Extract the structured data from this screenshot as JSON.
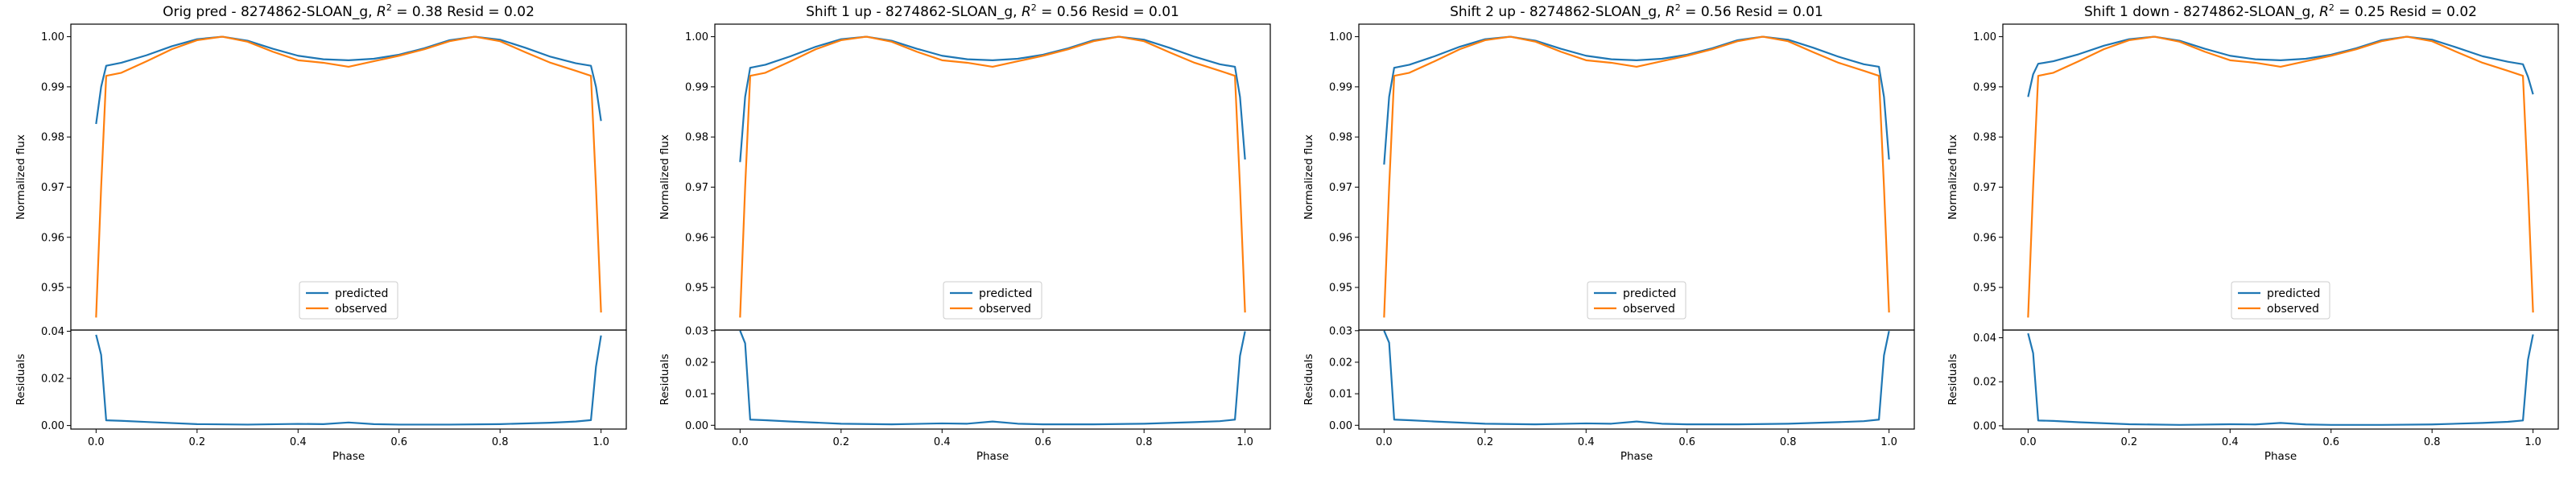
{
  "figure": {
    "legend_loc": "lower center",
    "colors": {
      "predicted": "#1f77b4",
      "observed": "#ff7f0e",
      "axes": "#000000"
    }
  },
  "chart_data": [
    {
      "type": "line",
      "title_prefix": "Orig pred - 8274862-SLOAN_g, ",
      "title_r2": "R",
      "title_sup": "2",
      "title_suffix": " = 0.38 Resid = 0.02",
      "xlabel": "Phase",
      "ylabel": "Normalized flux",
      "ylabel_resid": "Residuals",
      "xlim": [
        -0.05,
        1.05
      ],
      "ylim": [
        0.9415,
        1.0025
      ],
      "ylim_resid": [
        -0.0015,
        0.0405
      ],
      "xticks": [
        "0.0",
        "0.2",
        "0.4",
        "0.6",
        "0.8",
        "1.0"
      ],
      "yticks": [
        "0.95",
        "0.96",
        "0.97",
        "0.98",
        "0.99",
        "1.00"
      ],
      "yticks_resid": [
        "0.00",
        "0.02",
        "0.04"
      ],
      "legend": [
        "predicted",
        "observed"
      ],
      "series": [
        {
          "name": "predicted",
          "x": [
            0.0,
            0.01,
            0.02,
            0.05,
            0.1,
            0.15,
            0.2,
            0.25,
            0.3,
            0.35,
            0.4,
            0.45,
            0.5,
            0.55,
            0.6,
            0.65,
            0.7,
            0.75,
            0.8,
            0.85,
            0.9,
            0.95,
            0.98,
            0.99,
            1.0
          ],
          "y": [
            0.9826,
            0.99,
            0.9942,
            0.9948,
            0.9963,
            0.9981,
            0.9995,
            1.0,
            0.9992,
            0.9976,
            0.9962,
            0.9955,
            0.9953,
            0.9956,
            0.9964,
            0.9977,
            0.9993,
            1.0,
            0.9994,
            0.9978,
            0.996,
            0.9947,
            0.9942,
            0.99,
            0.9832
          ]
        },
        {
          "name": "observed",
          "x": [
            0.0,
            0.01,
            0.02,
            0.05,
            0.1,
            0.15,
            0.2,
            0.25,
            0.3,
            0.35,
            0.4,
            0.45,
            0.5,
            0.55,
            0.6,
            0.65,
            0.7,
            0.75,
            0.8,
            0.85,
            0.9,
            0.95,
            0.98,
            0.99,
            1.0
          ],
          "y": [
            0.944,
            0.97,
            0.9922,
            0.9928,
            0.9951,
            0.9975,
            0.9993,
            1.0,
            0.999,
            0.997,
            0.9953,
            0.9948,
            0.994,
            0.9951,
            0.9962,
            0.9975,
            0.9991,
            1.0,
            0.9991,
            0.9969,
            0.9948,
            0.9932,
            0.9922,
            0.97,
            0.945
          ]
        },
        {
          "name": "residuals",
          "x": [
            0.0,
            0.01,
            0.02,
            0.05,
            0.1,
            0.2,
            0.3,
            0.4,
            0.45,
            0.5,
            0.55,
            0.6,
            0.7,
            0.8,
            0.9,
            0.95,
            0.98,
            0.99,
            1.0
          ],
          "y": [
            0.0385,
            0.03,
            0.0022,
            0.002,
            0.0015,
            0.0006,
            0.0004,
            0.0007,
            0.0006,
            0.0013,
            0.0006,
            0.0004,
            0.0004,
            0.0006,
            0.0012,
            0.0017,
            0.0023,
            0.025,
            0.0382
          ]
        }
      ]
    },
    {
      "type": "line",
      "title_prefix": "Shift 1 up - 8274862-SLOAN_g, ",
      "title_r2": "R",
      "title_sup": "2",
      "title_suffix": " = 0.56 Resid = 0.01",
      "xlabel": "Phase",
      "ylabel": "Normalized flux",
      "ylabel_resid": "Residuals",
      "xlim": [
        -0.05,
        1.05
      ],
      "ylim": [
        0.9415,
        1.0025
      ],
      "ylim_resid": [
        -0.0012,
        0.0302
      ],
      "xticks": [
        "0.0",
        "0.2",
        "0.4",
        "0.6",
        "0.8",
        "1.0"
      ],
      "yticks": [
        "0.95",
        "0.96",
        "0.97",
        "0.98",
        "0.99",
        "1.00"
      ],
      "yticks_resid": [
        "0.00",
        "0.01",
        "0.02",
        "0.03"
      ],
      "legend": [
        "predicted",
        "observed"
      ],
      "series": [
        {
          "name": "predicted",
          "x": [
            0.0,
            0.01,
            0.02,
            0.05,
            0.1,
            0.15,
            0.2,
            0.25,
            0.3,
            0.35,
            0.4,
            0.45,
            0.5,
            0.55,
            0.6,
            0.65,
            0.7,
            0.75,
            0.8,
            0.85,
            0.9,
            0.95,
            0.98,
            0.99,
            1.0
          ],
          "y": [
            0.975,
            0.988,
            0.9938,
            0.9944,
            0.9961,
            0.998,
            0.9995,
            1.0,
            0.9992,
            0.9976,
            0.9962,
            0.9955,
            0.9953,
            0.9956,
            0.9964,
            0.9977,
            0.9993,
            1.0,
            0.9994,
            0.9978,
            0.996,
            0.9945,
            0.994,
            0.988,
            0.9755
          ]
        },
        {
          "name": "observed",
          "x": [
            0.0,
            0.01,
            0.02,
            0.05,
            0.1,
            0.15,
            0.2,
            0.25,
            0.3,
            0.35,
            0.4,
            0.45,
            0.5,
            0.55,
            0.6,
            0.65,
            0.7,
            0.75,
            0.8,
            0.85,
            0.9,
            0.95,
            0.98,
            0.99,
            1.0
          ],
          "y": [
            0.944,
            0.97,
            0.9922,
            0.9928,
            0.9951,
            0.9975,
            0.9993,
            1.0,
            0.999,
            0.997,
            0.9953,
            0.9948,
            0.994,
            0.9951,
            0.9962,
            0.9975,
            0.9991,
            1.0,
            0.9991,
            0.9969,
            0.9948,
            0.9932,
            0.9922,
            0.97,
            0.945
          ]
        },
        {
          "name": "residuals",
          "x": [
            0.0,
            0.01,
            0.02,
            0.05,
            0.1,
            0.2,
            0.3,
            0.4,
            0.45,
            0.5,
            0.55,
            0.6,
            0.7,
            0.8,
            0.9,
            0.95,
            0.98,
            0.99,
            1.0
          ],
          "y": [
            0.03,
            0.026,
            0.0018,
            0.0016,
            0.0012,
            0.0005,
            0.0003,
            0.0006,
            0.0005,
            0.0012,
            0.0005,
            0.0003,
            0.0003,
            0.0005,
            0.001,
            0.0013,
            0.0018,
            0.022,
            0.0298
          ]
        }
      ]
    },
    {
      "type": "line",
      "title_prefix": "Shift 2 up - 8274862-SLOAN_g, ",
      "title_r2": "R",
      "title_sup": "2",
      "title_suffix": " = 0.56 Resid = 0.01",
      "xlabel": "Phase",
      "ylabel": "Normalized flux",
      "ylabel_resid": "Residuals",
      "xlim": [
        -0.05,
        1.05
      ],
      "ylim": [
        0.9415,
        1.0025
      ],
      "ylim_resid": [
        -0.0012,
        0.0302
      ],
      "xticks": [
        "0.0",
        "0.2",
        "0.4",
        "0.6",
        "0.8",
        "1.0"
      ],
      "yticks": [
        "0.95",
        "0.96",
        "0.97",
        "0.98",
        "0.99",
        "1.00"
      ],
      "yticks_resid": [
        "0.00",
        "0.01",
        "0.02",
        "0.03"
      ],
      "legend": [
        "predicted",
        "observed"
      ],
      "series": [
        {
          "name": "predicted",
          "x": [
            0.0,
            0.01,
            0.02,
            0.05,
            0.1,
            0.15,
            0.2,
            0.25,
            0.3,
            0.35,
            0.4,
            0.45,
            0.5,
            0.55,
            0.6,
            0.65,
            0.7,
            0.75,
            0.8,
            0.85,
            0.9,
            0.95,
            0.98,
            0.99,
            1.0
          ],
          "y": [
            0.9745,
            0.988,
            0.9938,
            0.9944,
            0.9961,
            0.998,
            0.9995,
            1.0,
            0.9992,
            0.9976,
            0.9962,
            0.9955,
            0.9953,
            0.9956,
            0.9964,
            0.9977,
            0.9993,
            1.0,
            0.9994,
            0.9978,
            0.996,
            0.9945,
            0.994,
            0.988,
            0.9755
          ]
        },
        {
          "name": "observed",
          "x": [
            0.0,
            0.01,
            0.02,
            0.05,
            0.1,
            0.15,
            0.2,
            0.25,
            0.3,
            0.35,
            0.4,
            0.45,
            0.5,
            0.55,
            0.6,
            0.65,
            0.7,
            0.75,
            0.8,
            0.85,
            0.9,
            0.95,
            0.98,
            0.99,
            1.0
          ],
          "y": [
            0.944,
            0.97,
            0.9922,
            0.9928,
            0.9951,
            0.9975,
            0.9993,
            1.0,
            0.999,
            0.997,
            0.9953,
            0.9948,
            0.994,
            0.9951,
            0.9962,
            0.9975,
            0.9991,
            1.0,
            0.9991,
            0.9969,
            0.9948,
            0.9932,
            0.9922,
            0.97,
            0.945
          ]
        },
        {
          "name": "residuals",
          "x": [
            0.0,
            0.01,
            0.02,
            0.05,
            0.1,
            0.2,
            0.3,
            0.4,
            0.45,
            0.5,
            0.55,
            0.6,
            0.7,
            0.8,
            0.9,
            0.95,
            0.98,
            0.99,
            1.0
          ],
          "y": [
            0.03,
            0.0262,
            0.0018,
            0.0016,
            0.0012,
            0.0005,
            0.0003,
            0.0006,
            0.0005,
            0.0012,
            0.0005,
            0.0003,
            0.0003,
            0.0005,
            0.001,
            0.0013,
            0.0018,
            0.0222,
            0.0299
          ]
        }
      ]
    },
    {
      "type": "line",
      "title_prefix": "Shift 1 down - 8274862-SLOAN_g, ",
      "title_r2": "R",
      "title_sup": "2",
      "title_suffix": " = 0.25 Resid = 0.02",
      "xlabel": "Phase",
      "ylabel": "Normalized flux",
      "ylabel_resid": "Residuals",
      "xlim": [
        -0.05,
        1.05
      ],
      "ylim": [
        0.9415,
        1.0025
      ],
      "ylim_resid": [
        -0.0015,
        0.0435
      ],
      "xticks": [
        "0.0",
        "0.2",
        "0.4",
        "0.6",
        "0.8",
        "1.0"
      ],
      "yticks": [
        "0.95",
        "0.96",
        "0.97",
        "0.98",
        "0.99",
        "1.00"
      ],
      "yticks_resid": [
        "0.00",
        "0.02",
        "0.04"
      ],
      "legend": [
        "predicted",
        "observed"
      ],
      "series": [
        {
          "name": "predicted",
          "x": [
            0.0,
            0.01,
            0.02,
            0.05,
            0.1,
            0.15,
            0.2,
            0.25,
            0.3,
            0.35,
            0.4,
            0.45,
            0.5,
            0.55,
            0.6,
            0.65,
            0.7,
            0.75,
            0.8,
            0.85,
            0.9,
            0.95,
            0.98,
            0.99,
            1.0
          ],
          "y": [
            0.988,
            0.9925,
            0.9946,
            0.9951,
            0.9965,
            0.9982,
            0.9995,
            1.0,
            0.9992,
            0.9976,
            0.9962,
            0.9955,
            0.9953,
            0.9956,
            0.9964,
            0.9977,
            0.9993,
            1.0,
            0.9994,
            0.9978,
            0.9961,
            0.995,
            0.9945,
            0.992,
            0.9885
          ]
        },
        {
          "name": "observed",
          "x": [
            0.0,
            0.01,
            0.02,
            0.05,
            0.1,
            0.15,
            0.2,
            0.25,
            0.3,
            0.35,
            0.4,
            0.45,
            0.5,
            0.55,
            0.6,
            0.65,
            0.7,
            0.75,
            0.8,
            0.85,
            0.9,
            0.95,
            0.98,
            0.99,
            1.0
          ],
          "y": [
            0.944,
            0.97,
            0.9922,
            0.9928,
            0.9951,
            0.9975,
            0.9993,
            1.0,
            0.999,
            0.997,
            0.9953,
            0.9948,
            0.994,
            0.9951,
            0.9962,
            0.9975,
            0.9991,
            1.0,
            0.9991,
            0.9969,
            0.9948,
            0.9932,
            0.9922,
            0.97,
            0.945
          ]
        },
        {
          "name": "residuals",
          "x": [
            0.0,
            0.01,
            0.02,
            0.05,
            0.1,
            0.2,
            0.3,
            0.4,
            0.45,
            0.5,
            0.55,
            0.6,
            0.7,
            0.8,
            0.9,
            0.95,
            0.98,
            0.99,
            1.0
          ],
          "y": [
            0.042,
            0.033,
            0.0024,
            0.0022,
            0.0016,
            0.0007,
            0.0004,
            0.0007,
            0.0006,
            0.0013,
            0.0006,
            0.0004,
            0.0004,
            0.0006,
            0.0013,
            0.0018,
            0.0024,
            0.03,
            0.0415
          ]
        }
      ]
    }
  ]
}
